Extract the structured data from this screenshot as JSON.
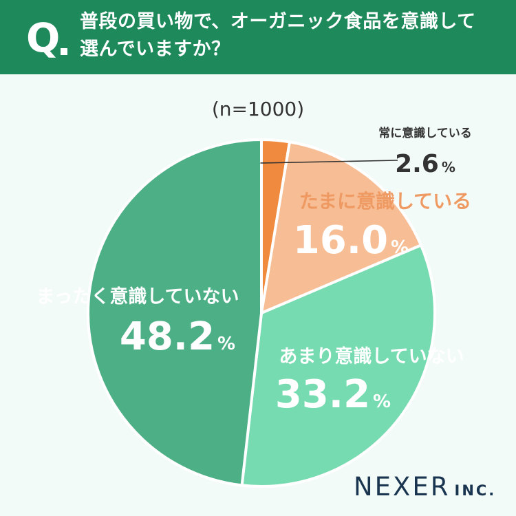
{
  "header": {
    "q_mark": "Q",
    "title_line1": "普段の買い物で、オーガニック食品を意識して",
    "title_line2": "選んでいますか？"
  },
  "sample_label": "(n=1000)",
  "brand": {
    "name": "NEXER",
    "suffix": "INC."
  },
  "colors": {
    "header": "#1e8a5c",
    "always": "#ef8a3e",
    "sometimes": "#f7bd94",
    "not_much": "#76dbb0",
    "not_at_all": "#4caf85",
    "background": "#f3fbf8"
  },
  "chart_data": {
    "type": "pie",
    "title": "普段の買い物で、オーガニック食品を意識して選んでいますか？",
    "slices": [
      {
        "label": "常に意識している",
        "value": 2.6,
        "display": "2.6",
        "unit": "%",
        "color": "#ef8a3e"
      },
      {
        "label": "たまに意識している",
        "value": 16.0,
        "display": "16.0",
        "unit": "%",
        "color": "#f7bd94"
      },
      {
        "label": "あまり意識していない",
        "value": 33.2,
        "display": "33.2",
        "unit": "%",
        "color": "#76dbb0"
      },
      {
        "label": "まったく意識していない",
        "value": 48.2,
        "display": "48.2",
        "unit": "%",
        "color": "#4caf85"
      }
    ]
  }
}
